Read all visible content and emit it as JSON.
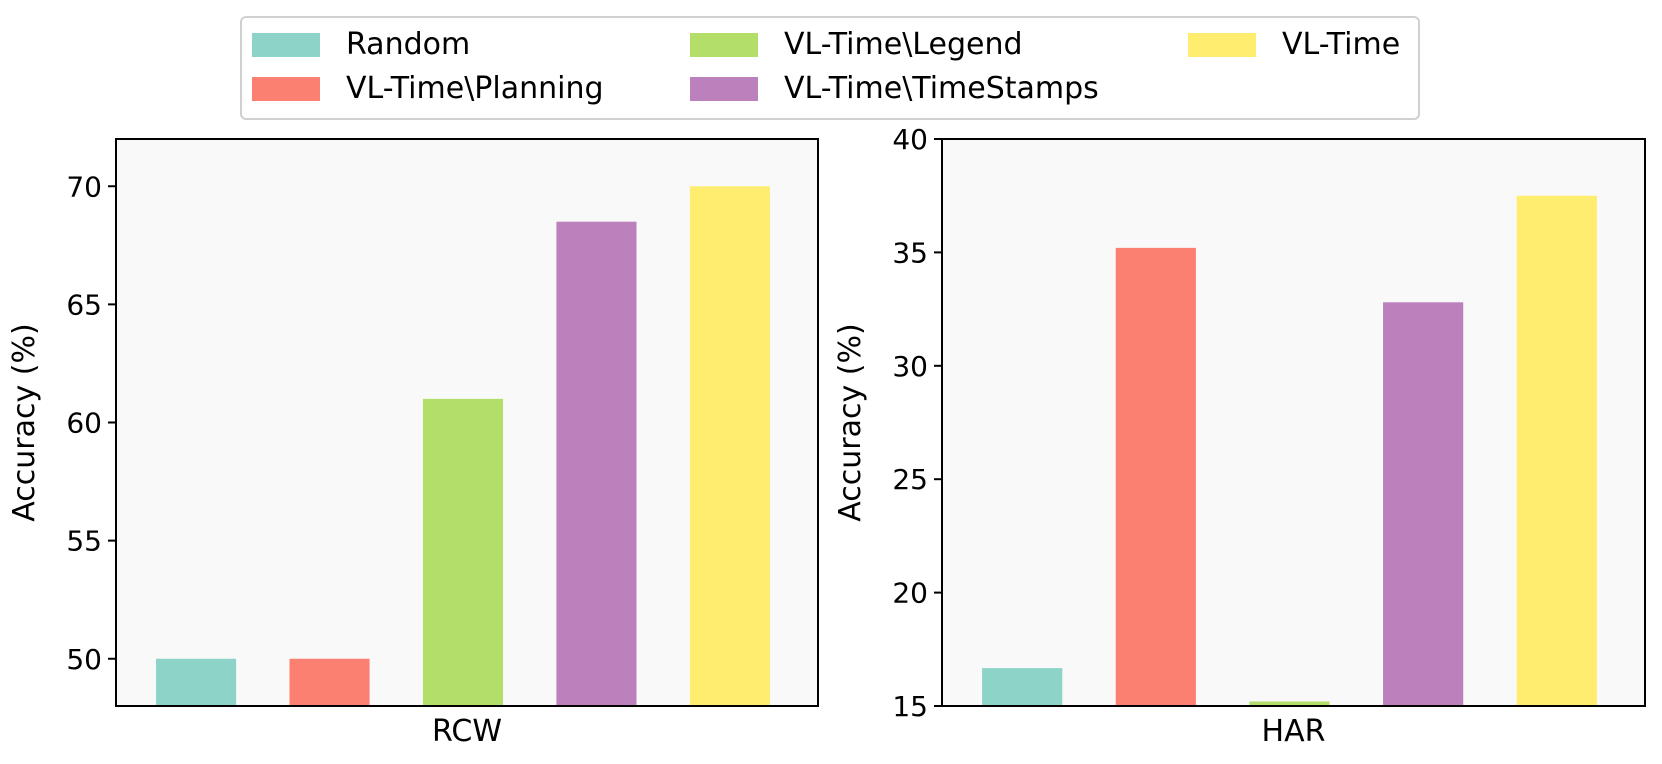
{
  "legend": {
    "items": [
      {
        "label": "Random",
        "color": "#8dd3c7"
      },
      {
        "label": "VL-Time\\Planning",
        "color": "#fb8072"
      },
      {
        "label": "VL-Time\\Legend",
        "color": "#b3de69"
      },
      {
        "label": "VL-Time\\TimeStamps",
        "color": "#bc80bd"
      },
      {
        "label": "VL-Time",
        "color": "#ffed6f"
      }
    ]
  },
  "chart_data": [
    {
      "type": "bar",
      "title": "",
      "xlabel": "RCW",
      "ylabel": "Accuracy (%)",
      "categories": [
        "Random",
        "VL-Time\\Planning",
        "VL-Time\\Legend",
        "VL-Time\\TimeStamps",
        "VL-Time"
      ],
      "values": [
        50.0,
        50.0,
        61.0,
        68.5,
        70.0
      ],
      "ylim": [
        48,
        72
      ],
      "yticks": [
        50,
        55,
        60,
        65,
        70
      ],
      "ytick_labels": [
        "50",
        "55",
        "60",
        "65",
        "70"
      ],
      "grid": false
    },
    {
      "type": "bar",
      "title": "",
      "xlabel": "HAR",
      "ylabel": "Accuracy (%)",
      "categories": [
        "Random",
        "VL-Time\\Planning",
        "VL-Time\\Legend",
        "VL-Time\\TimeStamps",
        "VL-Time"
      ],
      "values": [
        16.67,
        35.2,
        15.2,
        32.8,
        37.5
      ],
      "ylim": [
        15,
        40
      ],
      "yticks": [
        15,
        20,
        25,
        30,
        35,
        40
      ],
      "ytick_labels": [
        "15",
        "20",
        "25",
        "30",
        "35",
        "40"
      ],
      "grid": false
    }
  ]
}
